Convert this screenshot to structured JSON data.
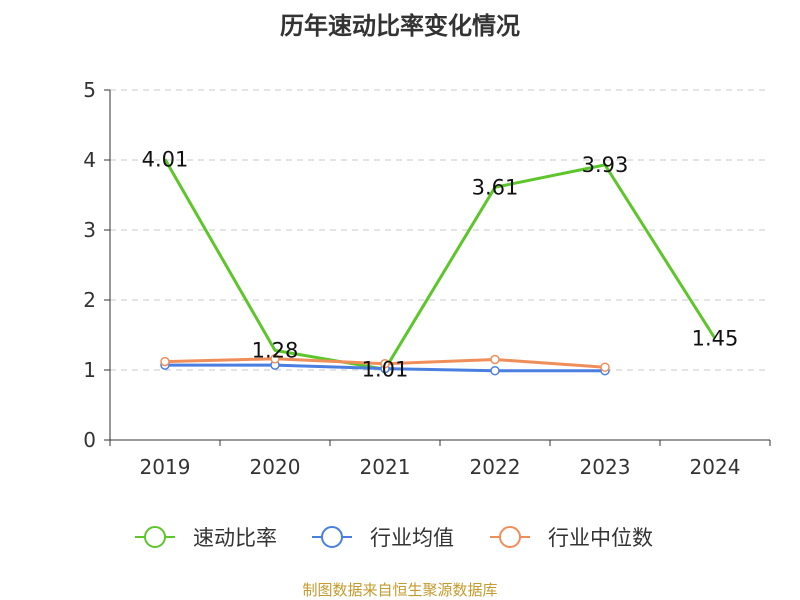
{
  "title": "历年速动比率变化情况",
  "source": "制图数据来自恒生聚源数据库",
  "chart_data": {
    "type": "line",
    "title": "历年速动比率变化情况",
    "categories": [
      "2019",
      "2020",
      "2021",
      "2022",
      "2023",
      "2024"
    ],
    "ylim": [
      0,
      5
    ],
    "yticks": [
      0,
      1,
      2,
      3,
      4,
      5
    ],
    "grid": true,
    "legend_position": "bottom",
    "series": [
      {
        "name": "速动比率",
        "color": "#5dc62a",
        "values": [
          4.01,
          1.28,
          1.01,
          3.61,
          3.93,
          1.45
        ],
        "labels": [
          "4.01",
          "1.28",
          "1.01",
          "3.61",
          "3.93",
          "1.45"
        ]
      },
      {
        "name": "行业均值",
        "color": "#4a7fe0",
        "values": [
          1.07,
          1.07,
          1.02,
          0.99,
          0.99,
          null
        ]
      },
      {
        "name": "行业中位数",
        "color": "#f08e5a",
        "values": [
          1.12,
          1.16,
          1.09,
          1.15,
          1.04,
          null
        ]
      }
    ]
  }
}
